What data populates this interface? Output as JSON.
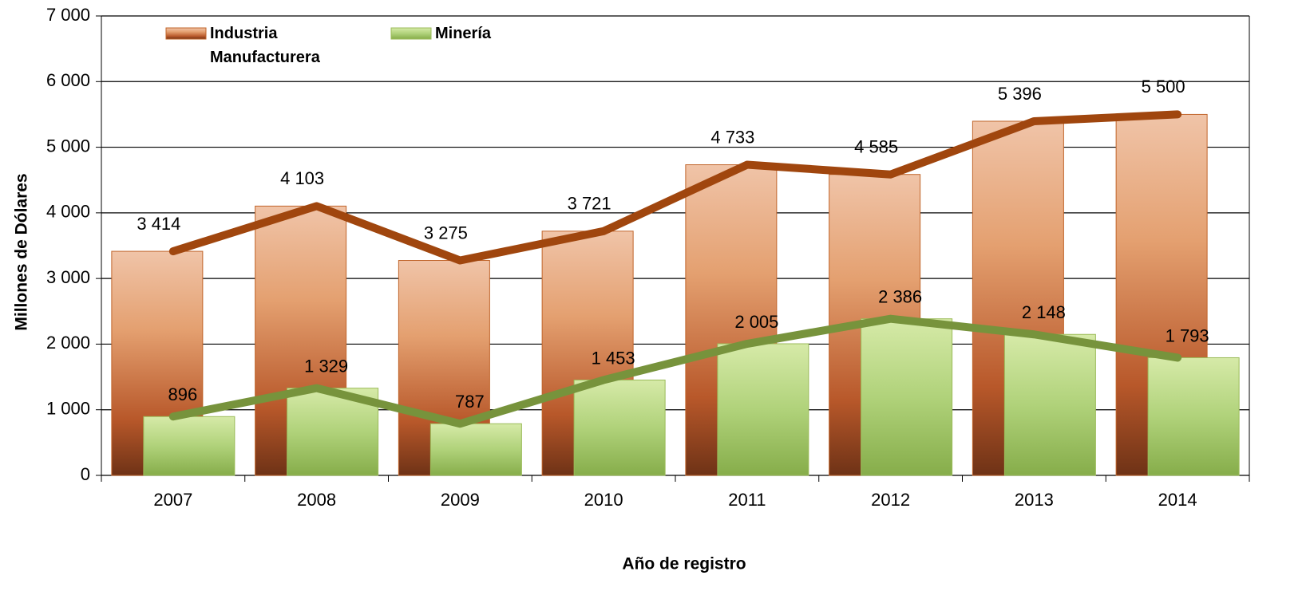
{
  "chart_data": {
    "type": "bar_line",
    "x_label": "Año de registro",
    "y_label": "Millones de Dólares",
    "categories": [
      "2007",
      "2008",
      "2009",
      "2010",
      "2011",
      "2012",
      "2013",
      "2014"
    ],
    "series": [
      {
        "name": "Industria Manufacturera",
        "color": "#c0642a",
        "line_color": "#a0460e",
        "values": [
          3414,
          4103,
          3275,
          3721,
          4733,
          4585,
          5396,
          5500
        ],
        "value_labels": [
          "3 414",
          "4 103",
          "3 275",
          "3 721",
          "4 733",
          "4 585",
          "5 396",
          "5 500"
        ]
      },
      {
        "name": "Minería",
        "color": "#9bbb59",
        "line_color": "#77933c",
        "values": [
          896,
          1329,
          787,
          1453,
          2005,
          2386,
          2148,
          1793
        ],
        "value_labels": [
          "896",
          "1 329",
          "787",
          "1 453",
          "2 005",
          "2 386",
          "2 148",
          "1 793"
        ]
      }
    ],
    "ylim": [
      0,
      7000
    ],
    "yticks": [
      0,
      {
        "value": 1000,
        "label": "1 000"
      },
      {
        "value": 2000,
        "label": "2 000"
      },
      {
        "value": 3000,
        "label": "3 000"
      },
      {
        "value": 4000,
        "label": "4 000"
      },
      {
        "value": 5000,
        "label": "5 000"
      },
      {
        "value": 6000,
        "label": "6 000"
      },
      {
        "value": 7000,
        "label": "7 000"
      }
    ],
    "grid": true
  }
}
